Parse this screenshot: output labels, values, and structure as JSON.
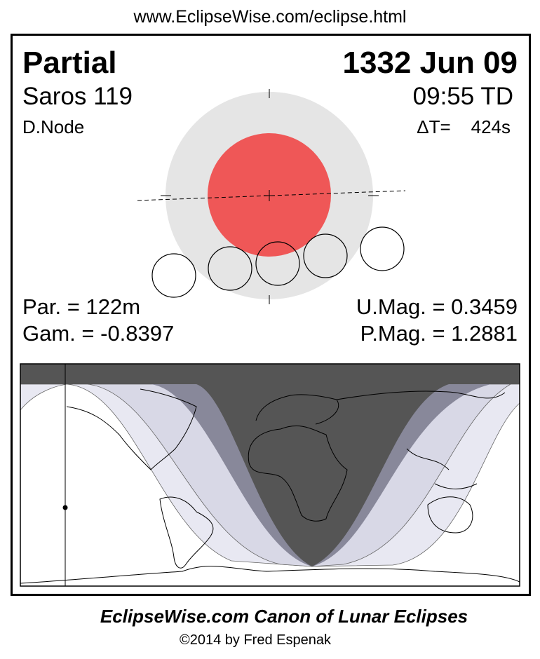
{
  "header": {
    "url": "www.EclipseWise.com/eclipse.html"
  },
  "eclipse": {
    "type": "Partial",
    "date": "1332 Jun 09",
    "saros": "Saros 119",
    "time": "09:55 TD",
    "node": "D.Node",
    "delta_t": "ΔT=    424s",
    "partial_duration": "Par. = 122m",
    "gamma": "Gam. = -0.8397",
    "umbral_magnitude": "U.Mag. = 0.3459",
    "penumbral_magnitude": "P.Mag. = 1.2881"
  },
  "colors": {
    "penumbra": "#e5e5e5",
    "umbra": "#ef5757",
    "night_zone": "#555555",
    "partial_zone": "#88889a",
    "penumbral_zone_inner": "#d8d8e6",
    "penumbral_zone_outer": "#e8e8f2"
  },
  "footer": {
    "title": "EclipseWise.com Canon of Lunar Eclipses",
    "copyright": "©2014 by Fred Espenak"
  }
}
